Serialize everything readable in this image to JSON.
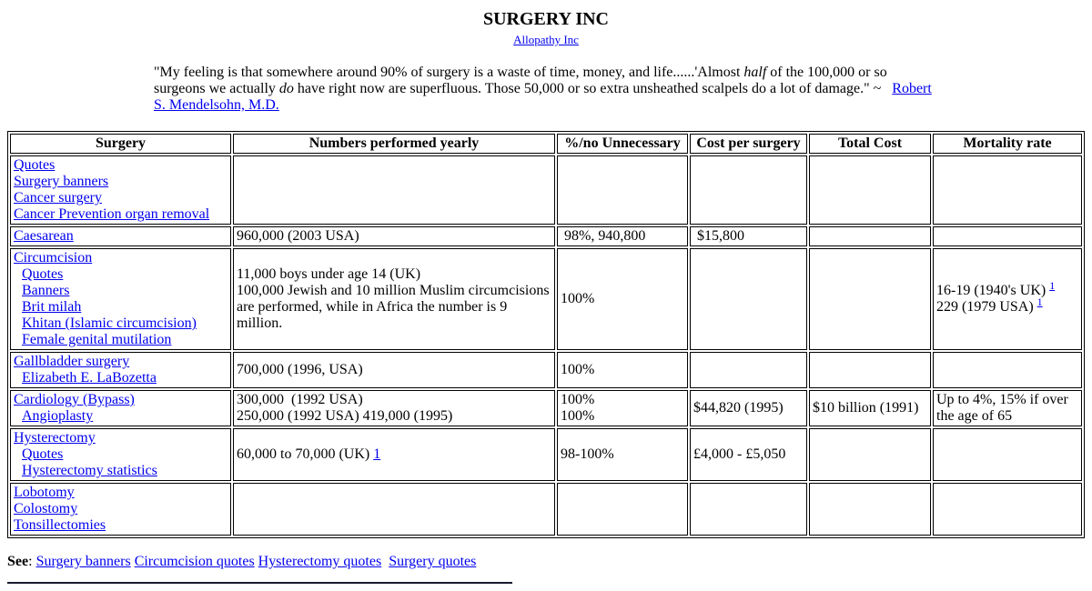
{
  "page": {
    "title": "SURGERY INC",
    "subtitle_link": "Allopathy Inc"
  },
  "colors": {
    "link": "#0000ee",
    "table_border": "#000000",
    "divider": "#191932",
    "text": "#000000",
    "background": "#ffffff"
  },
  "quote": {
    "segments": [
      {
        "t": "\"My feeling is that somewhere around 90% of surgery is a waste of time, money, and life......'Almost "
      },
      {
        "t": "half",
        "i": 1
      },
      {
        "t": " of the 100,000 or so surgeons we actually "
      },
      {
        "t": "do",
        "i": 1
      },
      {
        "t": " have right now are superfluous. Those 50,000 or so extra unsheathed scalpels do a lot of damage.\" ~   "
      },
      {
        "t": "Robert S. Mendelsohn, M.D.",
        "a": 1
      }
    ]
  },
  "table": {
    "headers": [
      "Surgery",
      "Numbers performed yearly",
      "%/no Unnecessary",
      "Cost per surgery",
      "Total Cost",
      "Mortality rate"
    ],
    "rows": [
      {
        "cells": [
          {
            "lines": [
              {
                "s": [
                  {
                    "t": "Quotes",
                    "a": 1
                  }
                ]
              },
              {
                "s": [
                  {
                    "t": "Surgery banners",
                    "a": 1
                  }
                ]
              },
              {
                "s": [
                  {
                    "t": "Cancer surgery",
                    "a": 1
                  }
                ]
              },
              {
                "s": [
                  {
                    "t": "Cancer Prevention organ removal",
                    "a": 1
                  }
                ]
              }
            ]
          },
          {
            "lines": []
          },
          {
            "lines": []
          },
          {
            "lines": []
          },
          {
            "lines": []
          },
          {
            "lines": []
          }
        ]
      },
      {
        "cells": [
          {
            "lines": [
              {
                "s": [
                  {
                    "t": "Caesarean",
                    "a": 1
                  }
                ]
              }
            ]
          },
          {
            "lines": [
              {
                "s": [
                  {
                    "t": "960,000 (2003 USA)"
                  }
                ]
              }
            ]
          },
          {
            "lines": [
              {
                "s": [
                  {
                    "t": " 98%, 940,800"
                  }
                ]
              }
            ]
          },
          {
            "lines": [
              {
                "s": [
                  {
                    "t": " $15,800"
                  }
                ]
              }
            ]
          },
          {
            "lines": []
          },
          {
            "lines": []
          }
        ]
      },
      {
        "cells": [
          {
            "lines": [
              {
                "s": [
                  {
                    "t": "Circumcision",
                    "a": 1
                  }
                ]
              },
              {
                "ind": 1,
                "s": [
                  {
                    "t": "Quotes",
                    "a": 1
                  }
                ]
              },
              {
                "ind": 1,
                "s": [
                  {
                    "t": "Banners",
                    "a": 1
                  }
                ]
              },
              {
                "ind": 1,
                "s": [
                  {
                    "t": "Brit milah",
                    "a": 1
                  }
                ]
              },
              {
                "ind": 1,
                "s": [
                  {
                    "t": "Khitan (Islamic circumcision)",
                    "a": 1
                  }
                ]
              },
              {
                "ind": 1,
                "s": [
                  {
                    "t": "Female genital mutilation",
                    "a": 1
                  }
                ]
              }
            ]
          },
          {
            "lines": [
              {
                "s": [
                  {
                    "t": "11,000 boys under age 14 (UK)"
                  }
                ]
              },
              {
                "s": [
                  {
                    "t": "100,000 Jewish and 10 million Muslim circumcisions are performed, while in Africa the number is 9 million."
                  }
                ]
              }
            ]
          },
          {
            "lines": [
              {
                "s": [
                  {
                    "t": "100%"
                  }
                ]
              }
            ]
          },
          {
            "lines": []
          },
          {
            "lines": []
          },
          {
            "lines": [
              {
                "s": [
                  {
                    "t": "16-19 (1940's UK) "
                  },
                  {
                    "t": "1",
                    "a": 1,
                    "sup": 1
                  }
                ]
              },
              {
                "s": [
                  {
                    "t": "229 (1979 USA) "
                  },
                  {
                    "t": "1",
                    "a": 1,
                    "sup": 1
                  }
                ]
              }
            ]
          }
        ]
      },
      {
        "cells": [
          {
            "lines": [
              {
                "s": [
                  {
                    "t": "Gallbladder surgery",
                    "a": 1
                  }
                ]
              },
              {
                "ind": 1,
                "s": [
                  {
                    "t": "Elizabeth E. LaBozetta",
                    "a": 1
                  }
                ]
              }
            ]
          },
          {
            "lines": [
              {
                "s": [
                  {
                    "t": "700,000 (1996, USA)"
                  }
                ]
              }
            ]
          },
          {
            "lines": [
              {
                "s": [
                  {
                    "t": "100%"
                  }
                ]
              }
            ]
          },
          {
            "lines": []
          },
          {
            "lines": []
          },
          {
            "lines": []
          }
        ]
      },
      {
        "cells": [
          {
            "lines": [
              {
                "s": [
                  {
                    "t": "Cardiology (Bypass)",
                    "a": 1
                  }
                ]
              },
              {
                "ind": 1,
                "s": [
                  {
                    "t": "Angioplasty",
                    "a": 1
                  }
                ]
              }
            ]
          },
          {
            "lines": [
              {
                "s": [
                  {
                    "t": "300,000  (1992 USA)"
                  }
                ]
              },
              {
                "s": [
                  {
                    "t": "250,000 (1992 USA) 419,000 (1995)"
                  }
                ]
              }
            ]
          },
          {
            "lines": [
              {
                "s": [
                  {
                    "t": "100%"
                  }
                ]
              },
              {
                "s": [
                  {
                    "t": "100%"
                  }
                ]
              }
            ]
          },
          {
            "lines": [
              {
                "s": [
                  {
                    "t": "$44,820 (1995)"
                  }
                ]
              }
            ]
          },
          {
            "lines": [
              {
                "s": [
                  {
                    "t": "$10 billion (1991)"
                  }
                ]
              }
            ]
          },
          {
            "lines": [
              {
                "s": [
                  {
                    "t": "Up to 4%, 15% if over the age of 65"
                  }
                ]
              }
            ]
          }
        ]
      },
      {
        "cells": [
          {
            "lines": [
              {
                "s": [
                  {
                    "t": "Hysterectomy",
                    "a": 1
                  }
                ]
              },
              {
                "ind": 1,
                "s": [
                  {
                    "t": "Quotes",
                    "a": 1
                  }
                ]
              },
              {
                "ind": 1,
                "s": [
                  {
                    "t": "Hysterectomy statistics",
                    "a": 1
                  }
                ]
              }
            ]
          },
          {
            "lines": [
              {
                "s": [
                  {
                    "t": "60,000 to 70,000 (UK) "
                  },
                  {
                    "t": "1",
                    "a": 1
                  }
                ]
              }
            ]
          },
          {
            "lines": [
              {
                "s": [
                  {
                    "t": "98-100%"
                  }
                ]
              }
            ]
          },
          {
            "lines": [
              {
                "s": [
                  {
                    "t": "£4,000 - £5,050"
                  }
                ]
              }
            ]
          },
          {
            "lines": []
          },
          {
            "lines": []
          }
        ]
      },
      {
        "cells": [
          {
            "lines": [
              {
                "s": [
                  {
                    "t": "Lobotomy",
                    "a": 1
                  }
                ]
              },
              {
                "s": [
                  {
                    "t": "Colostomy",
                    "a": 1
                  }
                ]
              },
              {
                "s": [
                  {
                    "t": "Tonsillectomies",
                    "a": 1
                  }
                ]
              }
            ]
          },
          {
            "lines": []
          },
          {
            "lines": []
          },
          {
            "lines": []
          },
          {
            "lines": []
          },
          {
            "lines": []
          }
        ]
      }
    ]
  },
  "see_also": {
    "label": "See",
    "colon": ": ",
    "links": [
      {
        "t": "Surgery banners"
      },
      {
        "t": "Circumcision quotes"
      },
      {
        "t": "Hysterectomy quotes"
      },
      {
        "t": "Surgery quotes",
        "pre": " "
      }
    ]
  }
}
